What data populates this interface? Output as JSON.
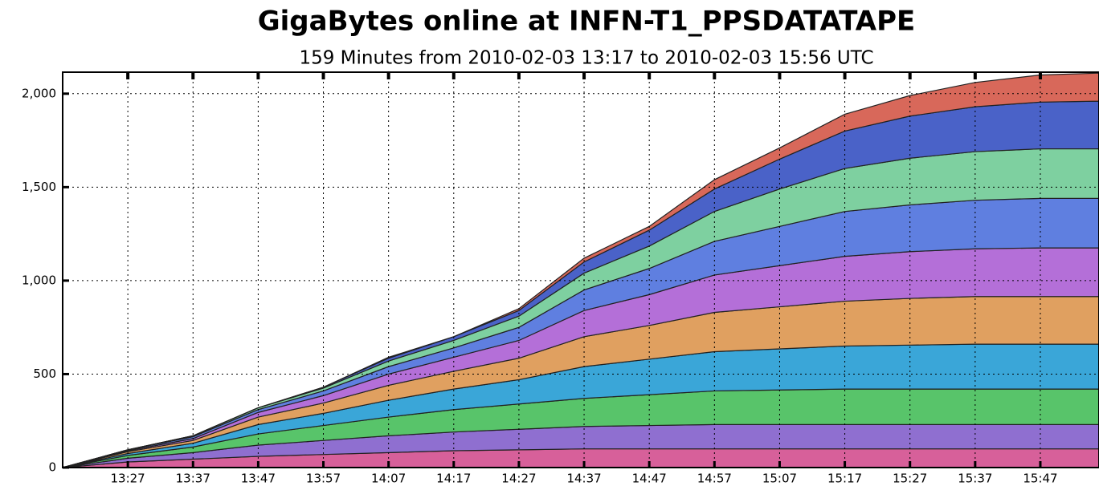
{
  "chart_data": {
    "type": "stacked_area",
    "title": "GigaBytes online at INFN-T1_PPSDATATAPE",
    "subtitle": "159 Minutes from 2010-02-03 13:17 to 2010-02-03 15:56 UTC",
    "x": [
      "13:17",
      "13:27",
      "13:37",
      "13:47",
      "13:57",
      "14:07",
      "14:17",
      "14:27",
      "14:37",
      "14:47",
      "14:57",
      "15:07",
      "15:17",
      "15:27",
      "15:37",
      "15:47",
      "15:56"
    ],
    "xlim": [
      "13:17",
      "15:56"
    ],
    "xticks": [
      "13:27",
      "13:37",
      "13:47",
      "13:57",
      "14:07",
      "14:17",
      "14:27",
      "14:37",
      "14:47",
      "14:57",
      "15:07",
      "15:17",
      "15:27",
      "15:37",
      "15:47"
    ],
    "ylim": [
      0,
      2115
    ],
    "yticks": [
      0,
      500,
      {
        "value": 1000,
        "label": "1,000"
      },
      {
        "value": 1500,
        "label": "1,500"
      },
      {
        "value": 2000,
        "label": "2,000"
      }
    ],
    "grid": true,
    "series": [
      {
        "color": "#d7609a",
        "values": [
          0,
          30,
          45,
          60,
          70,
          80,
          90,
          95,
          100,
          100,
          100,
          100,
          100,
          100,
          100,
          100,
          100
        ]
      },
      {
        "color": "#8f6fd0",
        "values": [
          0,
          20,
          35,
          60,
          75,
          90,
          100,
          110,
          120,
          125,
          130,
          130,
          130,
          130,
          130,
          130,
          130
        ]
      },
      {
        "color": "#58c46a",
        "values": [
          0,
          15,
          30,
          60,
          80,
          100,
          120,
          135,
          150,
          165,
          180,
          185,
          190,
          190,
          190,
          190,
          190
        ]
      },
      {
        "color": "#3aa6d8",
        "values": [
          0,
          10,
          20,
          50,
          65,
          90,
          110,
          130,
          170,
          190,
          210,
          220,
          230,
          235,
          240,
          240,
          240
        ]
      },
      {
        "color": "#e0a060",
        "values": [
          0,
          10,
          15,
          40,
          55,
          80,
          95,
          115,
          160,
          180,
          210,
          225,
          240,
          250,
          255,
          255,
          255
        ]
      },
      {
        "color": "#b46fd8",
        "values": [
          0,
          5,
          10,
          25,
          40,
          60,
          75,
          95,
          140,
          165,
          200,
          220,
          240,
          250,
          255,
          260,
          260
        ]
      },
      {
        "color": "#5f7fe0",
        "values": [
          0,
          5,
          10,
          15,
          25,
          40,
          50,
          70,
          110,
          140,
          180,
          210,
          240,
          250,
          260,
          265,
          265
        ]
      },
      {
        "color": "#7ed0a0",
        "values": [
          0,
          0,
          5,
          10,
          15,
          30,
          40,
          60,
          90,
          120,
          160,
          200,
          230,
          250,
          260,
          265,
          265
        ]
      },
      {
        "color": "#4a62c8",
        "values": [
          0,
          0,
          0,
          0,
          5,
          15,
          20,
          30,
          60,
          85,
          120,
          160,
          200,
          225,
          240,
          250,
          255
        ]
      },
      {
        "color": "#d8685a",
        "values": [
          0,
          0,
          0,
          0,
          0,
          5,
          0,
          10,
          20,
          20,
          50,
          60,
          90,
          110,
          130,
          145,
          150
        ]
      }
    ]
  }
}
